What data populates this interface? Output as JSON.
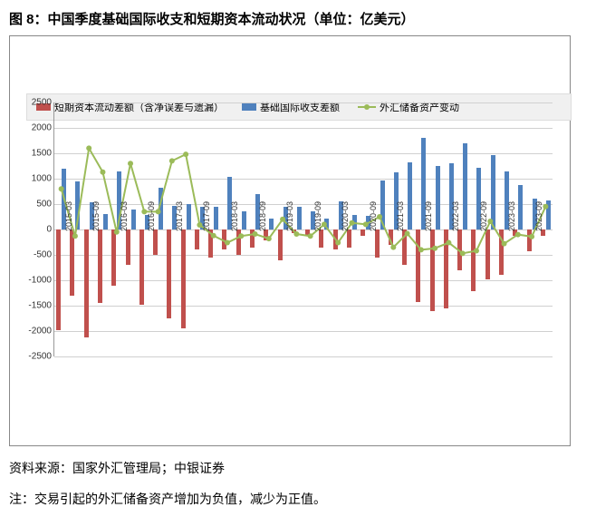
{
  "title": "图 8：中国季度基础国际收支和短期资本流动状况（单位：亿美元）",
  "source": "资料来源：国家外汇管理局；中银证券",
  "note": "注：交易引起的外汇储备资产增加为负值，减少为正值。",
  "chart": {
    "type": "bar_line_combo",
    "ylim": [
      -2500,
      2500
    ],
    "ytick_step": 500,
    "background_color": "#ffffff",
    "grid_color": "#d0d0d0",
    "axis_color": "#999999",
    "label_fontsize": 10,
    "categories": [
      "2015-03",
      "2015-09",
      "2016-03",
      "2016-09",
      "2017-03",
      "2017-09",
      "2018-03",
      "2018-09",
      "2019-03",
      "2019-09",
      "2020-03",
      "2020-09",
      "2021-03",
      "2021-09",
      "2022-03",
      "2022-09",
      "2023-03",
      "2023-09"
    ],
    "all_points": 36,
    "series": [
      {
        "name": "短期资本流动差额（含净误差与遗漏）",
        "type": "bar",
        "color": "#c0504d",
        "values": [
          -1980,
          -1300,
          -2130,
          -1450,
          -1100,
          -700,
          -1480,
          -500,
          -1750,
          -1950,
          -400,
          -550,
          -400,
          -500,
          -350,
          -220,
          -600,
          -80,
          -100,
          -350,
          -400,
          -350,
          -130,
          -550,
          -300,
          -700,
          -1430,
          -1600,
          -1550,
          -800,
          -1220,
          -980,
          -900,
          -130,
          -420,
          -130
        ],
        "offset": -3
      },
      {
        "name": "基础国际收支差额",
        "type": "bar",
        "color": "#4f81bd",
        "values": [
          1200,
          950,
          540,
          300,
          1150,
          400,
          280,
          830,
          460,
          500,
          450,
          450,
          1040,
          350,
          690,
          210,
          440,
          450,
          360,
          220,
          560,
          290,
          270,
          960,
          1120,
          1330,
          1800,
          1250,
          1300,
          1700,
          1210,
          1470,
          1140,
          880,
          600,
          580
        ],
        "offset": 3
      },
      {
        "name": "外汇储备资产变动",
        "type": "line",
        "color": "#9bbb59",
        "marker": "circle",
        "values": [
          800,
          -130,
          1600,
          1130,
          -50,
          1300,
          350,
          350,
          1350,
          1480,
          90,
          -120,
          -260,
          -130,
          -90,
          -180,
          200,
          -90,
          -130,
          100,
          -260,
          130,
          100,
          250,
          -350,
          -80,
          -400,
          -370,
          -260,
          -470,
          -420,
          160,
          -280,
          -100,
          -140,
          450
        ]
      }
    ]
  }
}
